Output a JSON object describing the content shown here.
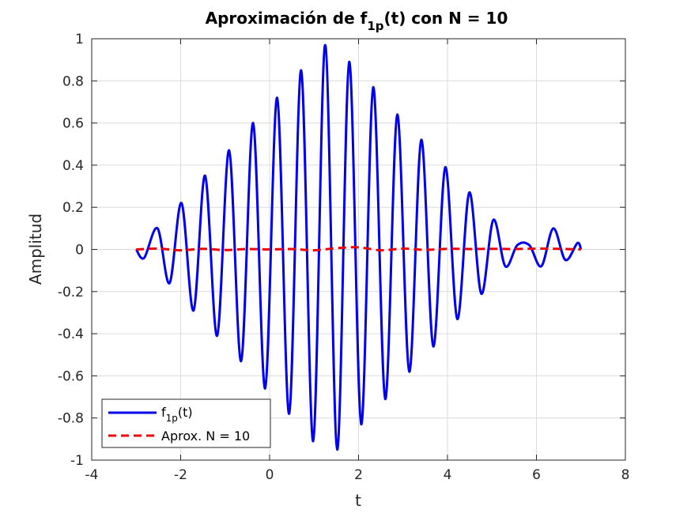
{
  "chart_data": {
    "type": "line",
    "title": {
      "main": "Aproximación de f",
      "sub": "1p",
      "rest": "(t) con N = 10"
    },
    "xlabel": "t",
    "ylabel": "Amplitud",
    "xlim": [
      -4,
      8
    ],
    "ylim": [
      -1,
      1
    ],
    "xticks": [
      -4,
      -2,
      0,
      2,
      4,
      6,
      8
    ],
    "yticks": [
      -1,
      -0.8,
      -0.6,
      -0.4,
      -0.2,
      0,
      0.2,
      0.4,
      0.6,
      0.8,
      1
    ],
    "xtick_labels": [
      "-4",
      "-2",
      "0",
      "2",
      "4",
      "6",
      "8"
    ],
    "ytick_labels": [
      "-1",
      "-0.8",
      "-0.6",
      "-0.4",
      "-0.2",
      "0",
      "0.2",
      "0.4",
      "0.6",
      "0.8",
      "1"
    ],
    "grid": true,
    "legend_position": "bottom-left",
    "series": [
      {
        "name": {
          "main": "f",
          "sub": "1p",
          "rest": "(t)"
        },
        "color": "#0000ee",
        "style": "solid",
        "x": [
          -3.0,
          -2.82,
          -2.52,
          -2.25,
          -1.98,
          -1.71,
          -1.45,
          -1.18,
          -0.91,
          -0.64,
          -0.37,
          -0.1,
          0.17,
          0.44,
          0.71,
          0.98,
          1.25,
          1.52,
          1.79,
          2.06,
          2.33,
          2.6,
          2.87,
          3.14,
          3.41,
          3.68,
          3.95,
          4.22,
          4.49,
          4.76,
          5.03,
          5.3,
          5.57,
          5.84,
          6.11,
          6.38,
          6.65,
          6.92,
          7.0
        ],
        "y": [
          0.0,
          -0.04,
          0.1,
          -0.16,
          0.22,
          -0.29,
          0.35,
          -0.41,
          0.47,
          -0.53,
          0.6,
          -0.66,
          0.72,
          -0.78,
          0.85,
          -0.91,
          0.97,
          -0.95,
          0.89,
          -0.83,
          0.77,
          -0.71,
          0.64,
          -0.58,
          0.52,
          -0.46,
          0.39,
          -0.33,
          0.27,
          -0.21,
          0.14,
          -0.08,
          0.02,
          0.02,
          -0.08,
          0.1,
          -0.05,
          0.03,
          0.0
        ]
      },
      {
        "name": {
          "main": "Aprox. N = 10",
          "sub": "",
          "rest": ""
        },
        "color": "#ee0000",
        "style": "dashed",
        "x": [
          -3.0,
          -2.5,
          -2.0,
          -1.5,
          -1.0,
          -0.5,
          0.0,
          0.5,
          1.0,
          1.5,
          2.0,
          2.5,
          3.0,
          3.5,
          4.0,
          4.5,
          5.0,
          5.5,
          6.0,
          6.5,
          7.0
        ],
        "y": [
          0.0,
          0.004,
          -0.004,
          0.003,
          -0.003,
          0.002,
          0.0,
          0.002,
          -0.004,
          0.006,
          0.01,
          -0.004,
          0.004,
          -0.002,
          0.003,
          0.002,
          0.003,
          0.002,
          0.004,
          0.003,
          0.0
        ]
      }
    ]
  }
}
